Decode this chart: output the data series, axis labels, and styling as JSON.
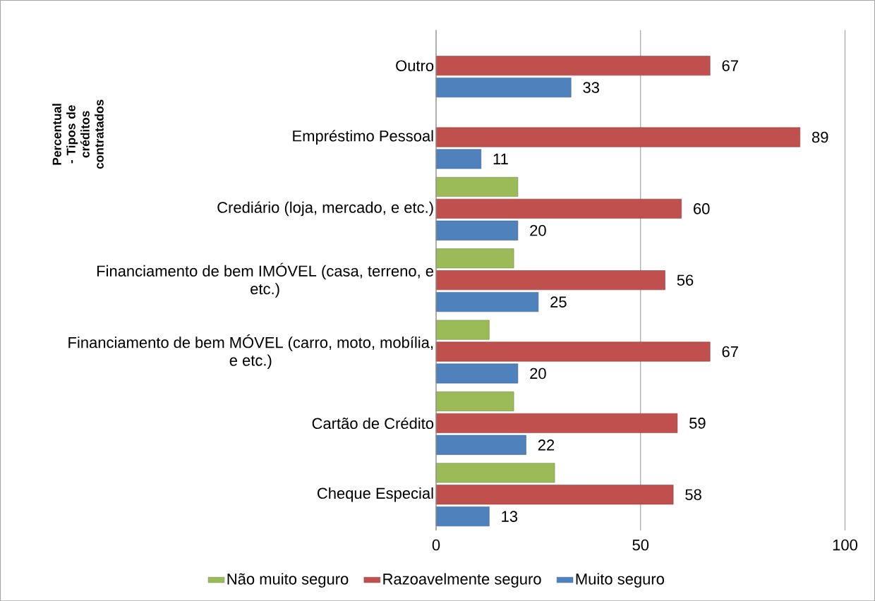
{
  "chart_data": {
    "type": "bar",
    "orientation": "horizontal",
    "ylabel": "Percentual - Tipos de créditos contratados",
    "categories": [
      "Outro",
      "Empréstimo Pessoal",
      "Crediário (loja, mercado, e etc.)",
      "Financiamento de bem IMÓVEL (casa, terreno, e etc.)",
      "Financiamento de bem MÓVEL (carro, moto, mobília, e etc.)",
      "Cartão de Crédito",
      "Cheque Especial"
    ],
    "series": [
      {
        "name": "Não muito seguro",
        "color": "#9bbb59",
        "values": [
          null,
          null,
          20,
          19,
          13,
          19,
          29
        ],
        "value_labels": [
          null,
          null,
          null,
          null,
          null,
          null,
          null
        ]
      },
      {
        "name": "Razoavelmente seguro",
        "color": "#c0504d",
        "values": [
          67,
          89,
          60,
          56,
          67,
          59,
          58
        ],
        "value_labels": [
          "67",
          "89",
          "60",
          "56",
          "67",
          "59",
          "58"
        ]
      },
      {
        "name": "Muito seguro",
        "color": "#4f81bd",
        "values": [
          33,
          11,
          20,
          25,
          20,
          22,
          13
        ],
        "value_labels": [
          "33",
          "11",
          "20",
          "25",
          "20",
          "22",
          "13"
        ]
      }
    ],
    "xlim": [
      0,
      100
    ],
    "xticks": [
      0,
      50,
      100
    ],
    "grid": "x",
    "legend": "bottom"
  }
}
